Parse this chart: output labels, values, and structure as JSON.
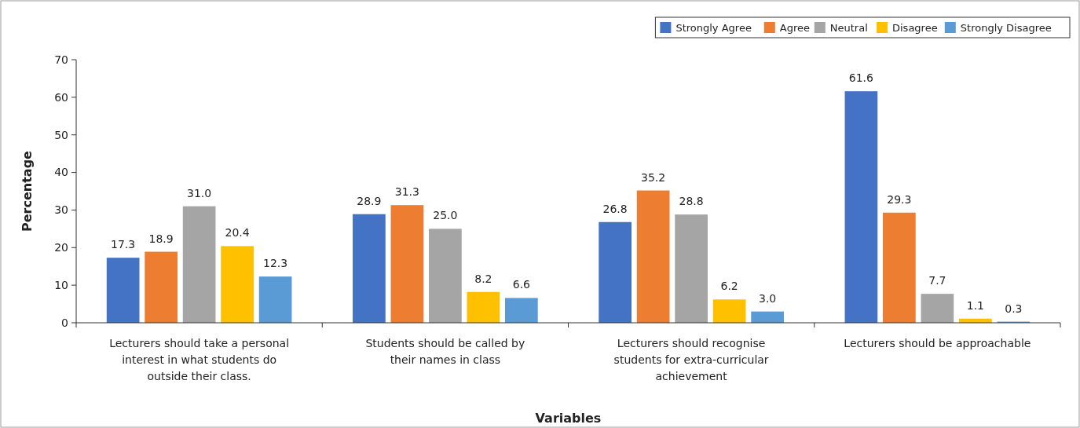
{
  "chart_data": {
    "type": "bar",
    "xlabel": "Variables",
    "ylabel": "Percentage",
    "categories": [
      "Lecturers should take a personal interest in what students do outside their class.",
      "Students should be called by their names in class",
      "Lecturers should recognise students for extra-curricular achievement",
      "Lecturers should be approachable"
    ],
    "series": [
      {
        "name": "Strongly Agree",
        "color": "#4472c4",
        "values": [
          17.3,
          28.9,
          26.8,
          61.6
        ],
        "value_labels": [
          "17.3",
          "28.9",
          "26.8",
          "61.6"
        ]
      },
      {
        "name": "Agree",
        "color": "#ed7d31",
        "values": [
          18.9,
          31.3,
          35.2,
          29.3
        ],
        "value_labels": [
          "18.9",
          "31.3",
          "35.2",
          "29.3"
        ]
      },
      {
        "name": "Neutral",
        "color": "#a5a5a5",
        "values": [
          31.0,
          25.0,
          28.8,
          7.7
        ],
        "value_labels": [
          "31.0",
          "25.0",
          "28.8",
          "7.7"
        ]
      },
      {
        "name": "Disagree",
        "color": "#ffc000",
        "values": [
          20.4,
          8.2,
          6.2,
          1.1
        ],
        "value_labels": [
          "20.4",
          "8.2",
          "6.2",
          "1.1"
        ]
      },
      {
        "name": "Strongly Disagree",
        "color": "#5b9bd5",
        "values": [
          12.3,
          6.6,
          3.0,
          0.3
        ],
        "value_labels": [
          "12.3",
          "6.6",
          "3.0",
          "0.3"
        ]
      }
    ],
    "ylim": [
      0,
      70
    ],
    "yticks": [
      0,
      10,
      20,
      30,
      40,
      50,
      60,
      70
    ],
    "grid": false,
    "legend": "top right"
  }
}
